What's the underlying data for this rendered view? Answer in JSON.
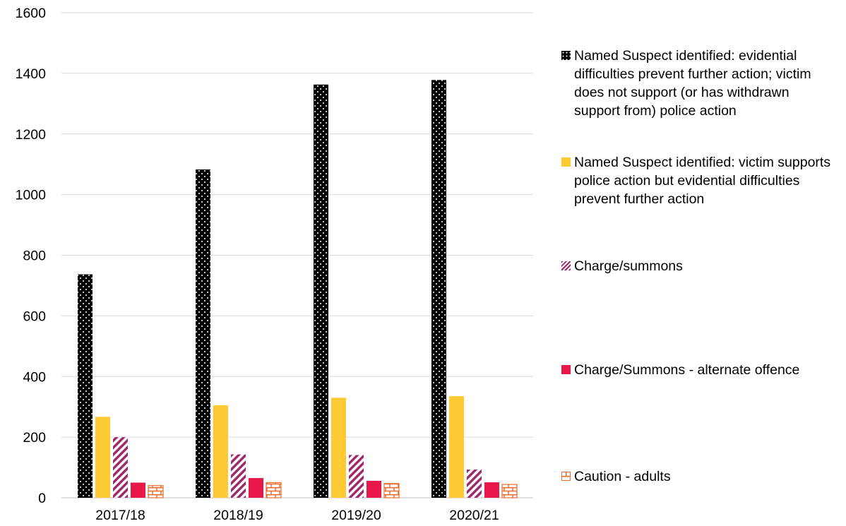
{
  "chart_data": {
    "type": "bar",
    "categories": [
      "2017/18",
      "2018/19",
      "2019/20",
      "2020/21"
    ],
    "series": [
      {
        "name": "Named Suspect identified: evidential difficulties prevent further action; victim does not support (or has withdrawn support from) police action",
        "values": [
          737,
          1083,
          1363,
          1378
        ],
        "color": "#000000",
        "pattern": "dots"
      },
      {
        "name": "Named Suspect identified: victim supports police action but evidential difficulties prevent further action",
        "values": [
          267,
          305,
          330,
          335
        ],
        "color": "#ffc933",
        "pattern": "solid"
      },
      {
        "name": "Charge/summons",
        "values": [
          200,
          143,
          141,
          93
        ],
        "color": "#a0296e",
        "pattern": "diagonal-stripes"
      },
      {
        "name": "Charge/Summons - alternate offence",
        "values": [
          50,
          65,
          56,
          51
        ],
        "color": "#e8184a",
        "pattern": "solid"
      },
      {
        "name": "Caution - adults",
        "values": [
          40,
          50,
          47,
          44
        ],
        "color": "#ef6b2c",
        "pattern": "brick"
      }
    ],
    "yticks": [
      "0",
      "200",
      "400",
      "600",
      "800",
      "1000",
      "1200",
      "1400",
      "1600"
    ],
    "ylim": [
      0,
      1600
    ],
    "grid": true,
    "legend_position": "right",
    "title": "",
    "xlabel": "",
    "ylabel": ""
  }
}
